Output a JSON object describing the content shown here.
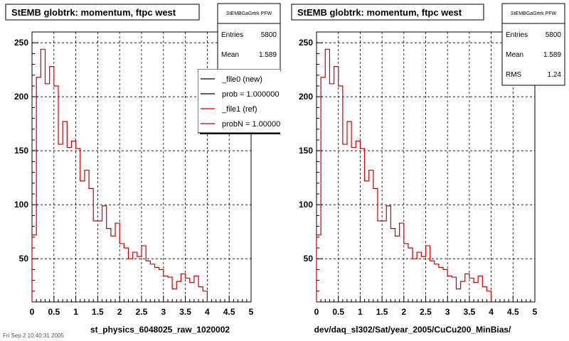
{
  "chart_data": [
    {
      "type": "histogram",
      "title": "StEMB globtrk: momentum, ftpc west",
      "xlabel": "st_physics_6048025_raw_1020002",
      "xlim": [
        0,
        5
      ],
      "ylim": [
        10,
        260
      ],
      "x_ticks": [
        0,
        0.5,
        1,
        1.5,
        2,
        2.5,
        3,
        3.5,
        4,
        4.5,
        5
      ],
      "x_tick_labels": [
        "0",
        "0.5",
        "1",
        "1.5",
        "2",
        "2.5",
        "3",
        "3.5",
        "4",
        "4.5",
        "5"
      ],
      "y_ticks": [
        50,
        100,
        150,
        200,
        250
      ],
      "y_tick_labels": [
        "50",
        "100",
        "150",
        "200",
        "250"
      ],
      "grid": true,
      "bin_width": 0.1,
      "stats": {
        "name": "StEMBGaGrtrk PFW",
        "entries_label": "Entries",
        "entries": "5800",
        "mean_label": "Mean",
        "mean": "1.589"
      },
      "legend": {
        "placement": "top-right",
        "entries": [
          {
            "label": "_file0 (new)",
            "color": "#000000"
          },
          {
            "label": "prob = 1.000000",
            "color": "#000000"
          },
          {
            "label": "_file1 (ref)",
            "color": "#cc0000"
          },
          {
            "label": "probN = 1.000000",
            "color": "#cc0000"
          }
        ]
      },
      "series": [
        {
          "color": "#cc0000",
          "values": [
            72,
            218,
            244,
            212,
            228,
            210,
            156,
            177,
            153,
            159,
            152,
            122,
            132,
            115,
            85,
            85,
            99,
            78,
            71,
            83,
            64,
            60,
            50,
            56,
            52,
            62,
            48,
            45,
            42,
            40,
            34,
            33,
            22,
            29,
            36,
            32,
            28,
            34,
            24,
            20
          ]
        }
      ]
    },
    {
      "type": "histogram",
      "title": "StEMB globtrk: momentum, ftpc west",
      "xlabel": "dev/daq_sl302/Sat/year_2005/CuCu200_MinBias/",
      "xlim": [
        0,
        5
      ],
      "ylim": [
        10,
        260
      ],
      "x_ticks": [
        0,
        0.5,
        1,
        1.5,
        2,
        2.5,
        3,
        3.5,
        4,
        4.5,
        5
      ],
      "x_tick_labels": [
        "0",
        "0.5",
        "1",
        "1.5",
        "2",
        "2.5",
        "3",
        "3.5",
        "4",
        "4.5",
        "5"
      ],
      "y_ticks": [
        50,
        100,
        150,
        200,
        250
      ],
      "y_tick_labels": [
        "50",
        "100",
        "150",
        "200",
        "250"
      ],
      "grid": true,
      "bin_width": 0.1,
      "stats": {
        "name": "StEMBGaGrtrk PFW",
        "entries_label": "Entries",
        "entries": "5800",
        "mean_label": "Mean",
        "mean": "1.589",
        "rms_label": "RMS",
        "rms": "1.24"
      },
      "series": [
        {
          "color": "#cc0000",
          "values": [
            72,
            218,
            244,
            212,
            228,
            210,
            156,
            177,
            153,
            159,
            152,
            122,
            132,
            115,
            85,
            85,
            99,
            78,
            71,
            83,
            64,
            60,
            50,
            56,
            52,
            62,
            48,
            45,
            42,
            40,
            34,
            33,
            22,
            29,
            36,
            32,
            28,
            34,
            24,
            20
          ]
        }
      ]
    }
  ],
  "footnote": "Fri Sep 2 10:40:31 2005"
}
